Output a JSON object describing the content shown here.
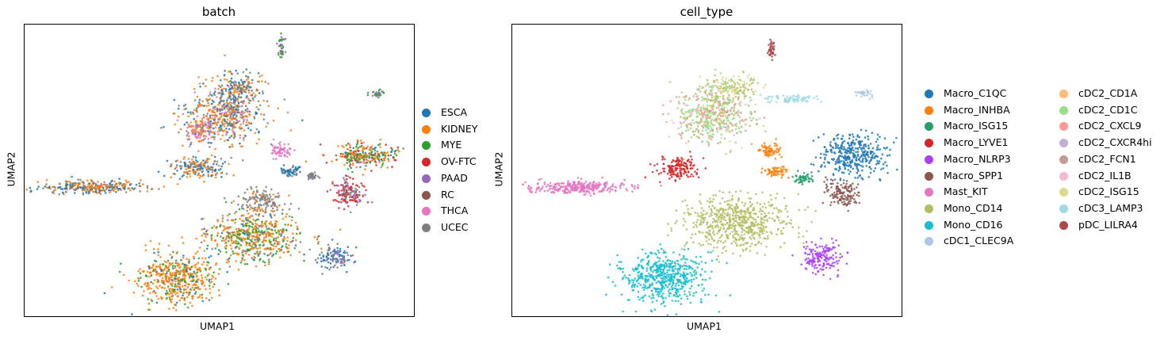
{
  "colors": {
    "tab10": [
      "#1f77b4",
      "#ff7f0e",
      "#2ca02c",
      "#d62728",
      "#9467bd",
      "#8c564b",
      "#e377c2",
      "#7f7f7f"
    ],
    "cell_type": [
      "#1f77b4",
      "#ff7f0e",
      "#279e68",
      "#d62728",
      "#aa40fc",
      "#8c564b",
      "#e377c2",
      "#b5bd61",
      "#17becf",
      "#aec7e8",
      "#ffbb78",
      "#98df8a",
      "#ff9896",
      "#c5b0d5",
      "#c49c94",
      "#f7b6d2",
      "#dbdb8d",
      "#9edae5",
      "#ad494a"
    ]
  },
  "chart_data": [
    {
      "type": "scatter",
      "title": "batch",
      "xlabel": "UMAP1",
      "ylabel": "UMAP2",
      "legend_position": "right",
      "series": [
        {
          "name": "ESCA"
        },
        {
          "name": "KIDNEY"
        },
        {
          "name": "MYE"
        },
        {
          "name": "OV-FTC"
        },
        {
          "name": "PAAD"
        },
        {
          "name": "RC"
        },
        {
          "name": "THCA"
        },
        {
          "name": "UCEC"
        }
      ]
    },
    {
      "type": "scatter",
      "title": "cell_type",
      "xlabel": "UMAP1",
      "ylabel": "UMAP2",
      "legend_position": "right",
      "series": [
        {
          "name": "Macro_C1QC"
        },
        {
          "name": "Macro_INHBA"
        },
        {
          "name": "Macro_ISG15"
        },
        {
          "name": "Macro_LYVE1"
        },
        {
          "name": "Macro_NLRP3"
        },
        {
          "name": "Macro_SPP1"
        },
        {
          "name": "Mast_KIT"
        },
        {
          "name": "Mono_CD14"
        },
        {
          "name": "Mono_CD16"
        },
        {
          "name": "cDC1_CLEC9A"
        },
        {
          "name": "cDC2_CD1A"
        },
        {
          "name": "cDC2_CD1C"
        },
        {
          "name": "cDC2_CXCL9"
        },
        {
          "name": "cDC2_CXCR4hi"
        },
        {
          "name": "cDC2_FCN1"
        },
        {
          "name": "cDC2_IL1B"
        },
        {
          "name": "cDC2_ISG15"
        },
        {
          "name": "cDC3_LAMP3"
        },
        {
          "name": "pDC_LILRA4"
        }
      ]
    }
  ]
}
